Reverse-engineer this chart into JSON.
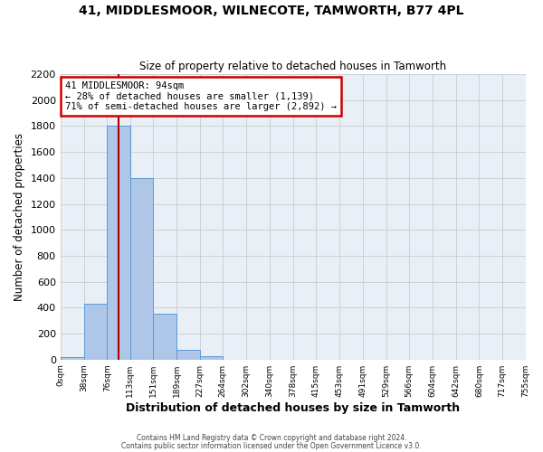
{
  "title1": "41, MIDDLESMOOR, WILNECOTE, TAMWORTH, B77 4PL",
  "title2": "Size of property relative to detached houses in Tamworth",
  "xlabel": "Distribution of detached houses by size in Tamworth",
  "ylabel": "Number of detached properties",
  "bin_edges": [
    0,
    38,
    76,
    113,
    151,
    189,
    227,
    264,
    302,
    340,
    378,
    415,
    453,
    491,
    529,
    566,
    604,
    642,
    680,
    717,
    755
  ],
  "bin_labels": [
    "0sqm",
    "38sqm",
    "76sqm",
    "113sqm",
    "151sqm",
    "189sqm",
    "227sqm",
    "264sqm",
    "302sqm",
    "340sqm",
    "378sqm",
    "415sqm",
    "453sqm",
    "491sqm",
    "529sqm",
    "566sqm",
    "604sqm",
    "642sqm",
    "680sqm",
    "717sqm",
    "755sqm"
  ],
  "bar_heights": [
    20,
    430,
    1800,
    1400,
    350,
    75,
    25,
    0,
    0,
    0,
    0,
    0,
    0,
    0,
    0,
    0,
    0,
    0,
    0,
    0
  ],
  "bar_color": "#aec6e8",
  "bar_edge_color": "#5b9bd5",
  "property_line_x": 94,
  "property_line_color": "#aa0000",
  "annotation_title": "41 MIDDLESMOOR: 94sqm",
  "annotation_line1": "← 28% of detached houses are smaller (1,139)",
  "annotation_line2": "71% of semi-detached houses are larger (2,892) →",
  "annotation_box_color": "#ffffff",
  "annotation_box_edge_color": "#cc0000",
  "ylim": [
    0,
    2200
  ],
  "yticks": [
    0,
    200,
    400,
    600,
    800,
    1000,
    1200,
    1400,
    1600,
    1800,
    2000,
    2200
  ],
  "grid_color": "#cccccc",
  "bg_color": "#e8eff7",
  "footer1": "Contains HM Land Registry data © Crown copyright and database right 2024.",
  "footer2": "Contains public sector information licensed under the Open Government Licence v3.0."
}
